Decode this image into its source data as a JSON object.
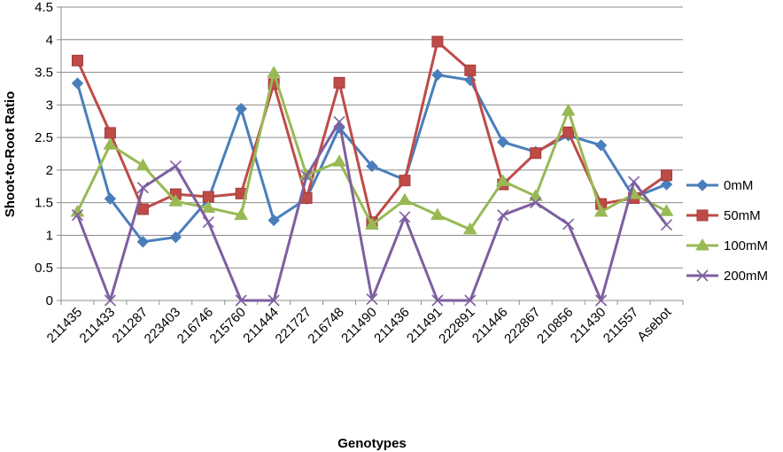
{
  "chart_data": {
    "type": "line",
    "title": "",
    "xlabel": "Genotypes",
    "ylabel": "Shoot-to-Root Ratio",
    "ylim": [
      0,
      4.5
    ],
    "yticks": [
      "0",
      "0.5",
      "1",
      "1.5",
      "2",
      "2.5",
      "3",
      "3.5",
      "4",
      "4.5"
    ],
    "grid": "horizontal",
    "legend_position": "right",
    "categories": [
      "211435",
      "211433",
      "211287",
      "223403",
      "216746",
      "215760",
      "211444",
      "221727",
      "216748",
      "211490",
      "211436",
      "211491",
      "222891",
      "211446",
      "222867",
      "210856",
      "211430",
      "211557",
      "Asebot"
    ],
    "series": [
      {
        "name": "0mM",
        "color": "#4a7ebb",
        "marker": "diamond",
        "values": [
          3.33,
          1.56,
          0.9,
          0.97,
          1.55,
          2.94,
          1.23,
          1.56,
          2.65,
          2.06,
          1.85,
          3.46,
          3.38,
          2.43,
          2.28,
          2.53,
          2.38,
          1.58,
          1.78
        ]
      },
      {
        "name": "50mM",
        "color": "#be4b48",
        "marker": "square",
        "values": [
          3.68,
          2.57,
          1.4,
          1.63,
          1.59,
          1.64,
          3.32,
          1.57,
          3.34,
          1.2,
          1.84,
          3.97,
          3.53,
          1.78,
          2.26,
          2.58,
          1.48,
          1.57,
          1.92
        ]
      },
      {
        "name": "100mM",
        "color": "#98b954",
        "marker": "triangle",
        "values": [
          1.36,
          2.39,
          2.07,
          1.52,
          1.42,
          1.31,
          3.49,
          1.92,
          2.13,
          1.16,
          1.54,
          1.31,
          1.09,
          1.83,
          1.6,
          2.91,
          1.36,
          1.63,
          1.37
        ]
      },
      {
        "name": "200mM",
        "color": "#7d5fa0",
        "marker": "x",
        "values": [
          1.31,
          0.0,
          1.73,
          2.06,
          1.2,
          0.0,
          0.0,
          1.91,
          2.74,
          0.02,
          1.28,
          0.0,
          0.0,
          1.31,
          1.5,
          1.17,
          0.0,
          1.82,
          1.16
        ]
      }
    ]
  }
}
